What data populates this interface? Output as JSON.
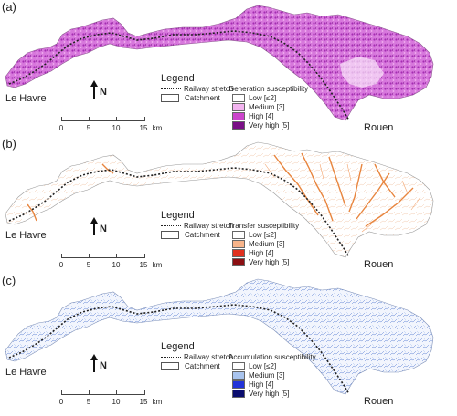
{
  "panels": [
    {
      "label": "(a)",
      "place_left": "Le Havre",
      "place_right": "Rouen",
      "north": "N",
      "scale": {
        "ticks": [
          "0",
          "5",
          "10",
          "15"
        ],
        "unit": "km"
      },
      "legend": {
        "title": "Legend",
        "railway": "Railway stretch",
        "catchment": "Catchment",
        "susceptibility_title": "Generation susceptibility",
        "classes": [
          {
            "label": "Low [≤2]",
            "color": "#ffffff"
          },
          {
            "label": "Medium [3]",
            "color": "#f3b4f0"
          },
          {
            "label": "High [4]",
            "color": "#cc44cc"
          },
          {
            "label": "Very high [5]",
            "color": "#7a0f86"
          }
        ]
      },
      "fill_color": "#d778dc",
      "texture_color": "#a52cb3"
    },
    {
      "label": "(b)",
      "place_left": "Le Havre",
      "place_right": "Rouen",
      "north": "N",
      "scale": {
        "ticks": [
          "0",
          "5",
          "10",
          "15"
        ],
        "unit": "km"
      },
      "legend": {
        "title": "Legend",
        "railway": "Railway stretch",
        "catchment": "Catchment",
        "susceptibility_title": "Transfer susceptibility",
        "classes": [
          {
            "label": "Low [≤2]",
            "color": "#ffffff"
          },
          {
            "label": "Medium [3]",
            "color": "#f7b48a"
          },
          {
            "label": "High [4]",
            "color": "#e0301e"
          },
          {
            "label": "Very high [5]",
            "color": "#8b0f12"
          }
        ]
      },
      "fill_color": "#ffffff",
      "texture_color": "#e8853e"
    },
    {
      "label": "(c)",
      "place_left": "Le Havre",
      "place_right": "Rouen",
      "north": "N",
      "scale": {
        "ticks": [
          "0",
          "5",
          "10",
          "15"
        ],
        "unit": "km"
      },
      "legend": {
        "title": "Legend",
        "railway": "Railway stretch",
        "catchment": "Catchment",
        "susceptibility_title": "Accumulation susceptibility",
        "classes": [
          {
            "label": "Low [≤2]",
            "color": "#ffffff"
          },
          {
            "label": "Medium [3]",
            "color": "#a9c4ee"
          },
          {
            "label": "High [4]",
            "color": "#2233d9"
          },
          {
            "label": "Very high [5]",
            "color": "#0a0d6e"
          }
        ]
      },
      "fill_color": "#f2f5fd",
      "texture_color": "#5b7fd3"
    }
  ]
}
